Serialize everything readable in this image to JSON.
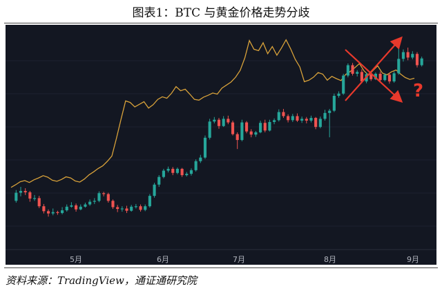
{
  "title": "图表1：BTC 与黄金价格走势分歧",
  "source": "资料来源：TradingView，通证通研究院",
  "annotation": {
    "symbol": "?",
    "color": "#e8392c"
  },
  "colors": {
    "background": "#131722",
    "up": "#26a69a",
    "down": "#ef5350",
    "gold": "#d9a23a"
  },
  "chart_data": {
    "type": "line",
    "x_ticks": [
      "5月",
      "6月",
      "7月",
      "8月",
      "9月"
    ],
    "grid": false,
    "series": [
      {
        "kind": "line",
        "values": [
          39.5,
          40.2,
          41,
          41.3,
          40.8,
          41.5,
          42,
          42.6,
          42.2,
          41.4,
          41.1,
          41.6,
          42.3,
          42,
          41.2,
          40.9,
          41.7,
          42.8,
          43.6,
          44.5,
          45.2,
          46.4,
          47.8,
          52.5,
          57.6,
          62.4,
          62,
          60.8,
          61.5,
          62.2,
          60.5,
          61.4,
          62.8,
          63.5,
          63.1,
          64.4,
          66.2,
          65.1,
          65.5,
          64.2,
          62.8,
          62.6,
          63.4,
          63.9,
          64.5,
          64.2,
          65.8,
          66.6,
          67.4,
          68.7,
          70.5,
          73.8,
          78.4,
          76.1,
          75.7,
          77.8,
          74.9,
          76.8,
          74.5,
          76.4,
          78.6,
          76.2,
          73.4,
          71.4,
          67.5,
          67.9,
          68.7,
          69.9,
          69.5,
          67.9,
          68.9,
          68.3,
          67.8,
          69.4,
          70.2,
          71.2,
          72.3,
          70.4,
          69.2,
          70.5,
          71.7,
          69.8,
          69.3,
          70.1,
          70.6,
          69.5,
          68.6,
          68.1,
          68.4
        ]
      },
      {
        "kind": "candlestick",
        "values": [
          [
            100,
            101.8,
            99.6,
            102.4
          ],
          [
            101.8,
            102.2,
            101,
            103.1
          ],
          [
            102.2,
            101.9,
            101.3,
            102.8
          ],
          [
            101.9,
            100.5,
            99.8,
            102.2
          ],
          [
            100.5,
            100.6,
            100,
            101.3
          ],
          [
            100.6,
            98.8,
            98.4,
            101.1
          ],
          [
            98.8,
            97.7,
            97.2,
            99.3
          ],
          [
            97.7,
            97.2,
            96.5,
            98.1
          ],
          [
            97.2,
            97.5,
            96.8,
            98.3
          ],
          [
            97.5,
            97.3,
            96.9,
            97.8
          ],
          [
            97.3,
            97.9,
            97,
            98.6
          ],
          [
            97.9,
            98.7,
            97.6,
            99.2
          ],
          [
            98.7,
            99,
            98.5,
            99.7
          ],
          [
            99,
            98.1,
            97.6,
            99.4
          ],
          [
            98.1,
            98.7,
            97.9,
            99.2
          ],
          [
            98.7,
            99.2,
            98.5,
            99.6
          ],
          [
            99.2,
            99.8,
            98.9,
            100.3
          ],
          [
            99.8,
            100,
            99.3,
            100.6
          ],
          [
            100,
            101.7,
            99.7,
            102.1
          ],
          [
            101.7,
            101.5,
            101,
            102
          ],
          [
            101.5,
            100,
            99.6,
            101.8
          ],
          [
            100,
            98.6,
            98.2,
            100.3
          ],
          [
            98.6,
            98.2,
            97.5,
            99.1
          ],
          [
            98.2,
            98.3,
            97.6,
            98.8
          ],
          [
            98.3,
            97.8,
            97.3,
            98.9
          ],
          [
            97.8,
            98.7,
            97.6,
            99.1
          ],
          [
            98.7,
            98.8,
            98.3,
            99.3
          ],
          [
            98.8,
            98,
            97.6,
            99.2
          ],
          [
            98,
            98.8,
            97.7,
            99.2
          ],
          [
            98.8,
            101.1,
            98.5,
            101.5
          ],
          [
            101.1,
            103.6,
            100.7,
            104
          ],
          [
            103.6,
            105.3,
            103.1,
            105.7
          ],
          [
            105.3,
            106.7,
            105,
            107.1
          ],
          [
            106.7,
            107.1,
            106.3,
            107.6
          ],
          [
            107.1,
            106.2,
            105.7,
            107.5
          ],
          [
            106.2,
            107.1,
            105.9,
            107.4
          ],
          [
            107.1,
            105.7,
            105.3,
            107.3
          ],
          [
            105.7,
            106,
            105.4,
            106.4
          ],
          [
            106,
            106.8,
            105.6,
            107.2
          ],
          [
            106.8,
            108.8,
            106.5,
            109.2
          ],
          [
            108.8,
            109.6,
            108.4,
            110.2
          ],
          [
            109.6,
            114,
            109.3,
            114.5
          ],
          [
            114,
            117.6,
            113.6,
            118.2
          ],
          [
            117.6,
            118,
            117.2,
            118.6
          ],
          [
            118,
            116.6,
            116,
            118.4
          ],
          [
            116.6,
            118.2,
            116.4,
            118.8
          ],
          [
            118.2,
            117.4,
            117,
            118.9
          ],
          [
            117.4,
            114.8,
            114.5,
            117.8
          ],
          [
            114.8,
            113.5,
            111.5,
            115.2
          ],
          [
            113.5,
            117.4,
            113.2,
            118
          ],
          [
            117.4,
            115.4,
            115,
            117.7
          ],
          [
            115.4,
            114.7,
            114.1,
            115.9
          ],
          [
            114.7,
            115.2,
            114.2,
            115.5
          ],
          [
            115.2,
            117.3,
            115,
            117.8
          ],
          [
            117.3,
            115.6,
            115.2,
            118
          ],
          [
            115.6,
            117.5,
            115.4,
            118
          ],
          [
            117.5,
            117.9,
            117,
            118.3
          ],
          [
            117.9,
            119.7,
            117.6,
            120.3
          ],
          [
            119.7,
            118.8,
            118.4,
            120.4
          ],
          [
            118.8,
            117.9,
            117.4,
            119.2
          ],
          [
            117.9,
            118.8,
            117.5,
            119.3
          ],
          [
            118.8,
            117.8,
            117.5,
            119.4
          ],
          [
            117.8,
            118.2,
            117.3,
            118.7
          ],
          [
            118.2,
            117.8,
            117.2,
            118.6
          ],
          [
            117.8,
            118.4,
            117.4,
            118.9
          ],
          [
            118.4,
            116.4,
            115.9,
            118.6
          ],
          [
            116.4,
            118.2,
            116.1,
            118.7
          ],
          [
            118.2,
            119.5,
            117.8,
            120.2
          ],
          [
            119.5,
            120,
            114.1,
            120.4
          ],
          [
            120,
            123.3,
            119.7,
            123.8
          ],
          [
            123.3,
            123.8,
            122.9,
            124.3
          ],
          [
            123.8,
            127.8,
            123.5,
            128.2
          ],
          [
            127.8,
            130.1,
            127.4,
            130.5
          ],
          [
            130.1,
            128.2,
            127.8,
            130.6
          ],
          [
            128.2,
            128.6,
            127.6,
            129
          ],
          [
            128.6,
            126.5,
            126.1,
            129.2
          ],
          [
            126.5,
            128.1,
            126.1,
            128.5
          ],
          [
            128.1,
            127,
            126.6,
            128.8
          ],
          [
            127,
            128.2,
            126.8,
            128.5
          ],
          [
            128.2,
            126.8,
            126.4,
            128.7
          ],
          [
            126.8,
            128,
            126.5,
            128.3
          ],
          [
            128,
            126.5,
            126,
            128.4
          ],
          [
            126.5,
            128.3,
            126.2,
            128.7
          ],
          [
            128.3,
            131.5,
            128,
            134.2
          ],
          [
            131.5,
            133,
            130.9,
            133.6
          ],
          [
            133,
            131.8,
            131.2,
            134
          ],
          [
            131.8,
            132.6,
            131.4,
            133.2
          ],
          [
            132.6,
            130.1,
            129.6,
            133
          ],
          [
            130.1,
            131.6,
            129.8,
            132
          ]
        ]
      }
    ]
  }
}
